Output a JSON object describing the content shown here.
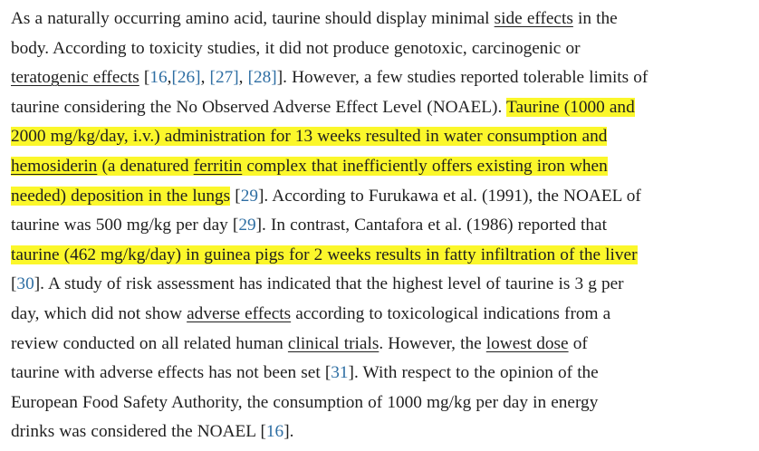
{
  "paragraph": {
    "l1": {
      "a": "As a naturally occurring amino acid, taurine should display minimal ",
      "term_side_effects": "side effects",
      "b": " in the"
    },
    "l2": {
      "a": "body. According to toxicity studies, it did not produce genotoxic, carcinogenic or"
    },
    "l3": {
      "term_teratogenic": "teratogenic effects",
      "a": " [",
      "ref16": "16",
      "c1": ",",
      "ref26": "[26]",
      "c2": ", ",
      "ref27": "[27]",
      "c3": ", ",
      "ref28": "[28]",
      "b": "]. However, a few studies reported tolerable limits of"
    },
    "l4": {
      "a": "taurine considering the No Observed Adverse Effect Level (NOAEL). ",
      "hl": "Taurine (1000 and"
    },
    "l5": {
      "hl": "2000 mg/kg/day, i.v.) administration for 13 weeks resulted in water consumption and"
    },
    "l6": {
      "term_hemosiderin": "hemosiderin",
      "hl_a": " (a denatured ",
      "term_ferritin": "ferritin",
      "hl_b": " complex that inefficiently offers existing iron when"
    },
    "l7": {
      "hl": "needed) deposition in the lungs",
      "a": " [",
      "ref29": "29",
      "b": "]. According to Furukawa et al. (1991), the NOAEL of"
    },
    "l8": {
      "a": "taurine was 500 mg/kg per day [",
      "ref29": "29",
      "b": "]. In contrast, Cantafora et al. (1986) reported that"
    },
    "l9": {
      "hl": "taurine (462 mg/kg/day) in guinea pigs for 2 weeks results in fatty infiltration of the liver"
    },
    "l10": {
      "a": "[",
      "ref30": "30",
      "b": "]. A study of risk assessment has indicated that the highest level of taurine is 3 g per"
    },
    "l11": {
      "a": "day, which did not show ",
      "term_adverse": "adverse effects",
      "b": " according to toxicological indications from a"
    },
    "l12": {
      "a": "review conducted on all related human ",
      "term_clinical": "clinical trials",
      "b": ". However, the ",
      "term_lowest": "lowest dose",
      "c": " of"
    },
    "l13": {
      "a": "taurine with adverse effects has not been set [",
      "ref31": "31",
      "b": "]. With respect to the opinion of the"
    },
    "l14": {
      "a": "European Food Safety Authority, the consumption of 1000 mg/kg per day in energy"
    },
    "l15": {
      "a": "drinks was considered the NOAEL [",
      "ref16": "16",
      "b": "]."
    }
  },
  "colors": {
    "highlight": "#fbf72b",
    "link": "#2e6ea3",
    "text": "#1f1f1f"
  }
}
